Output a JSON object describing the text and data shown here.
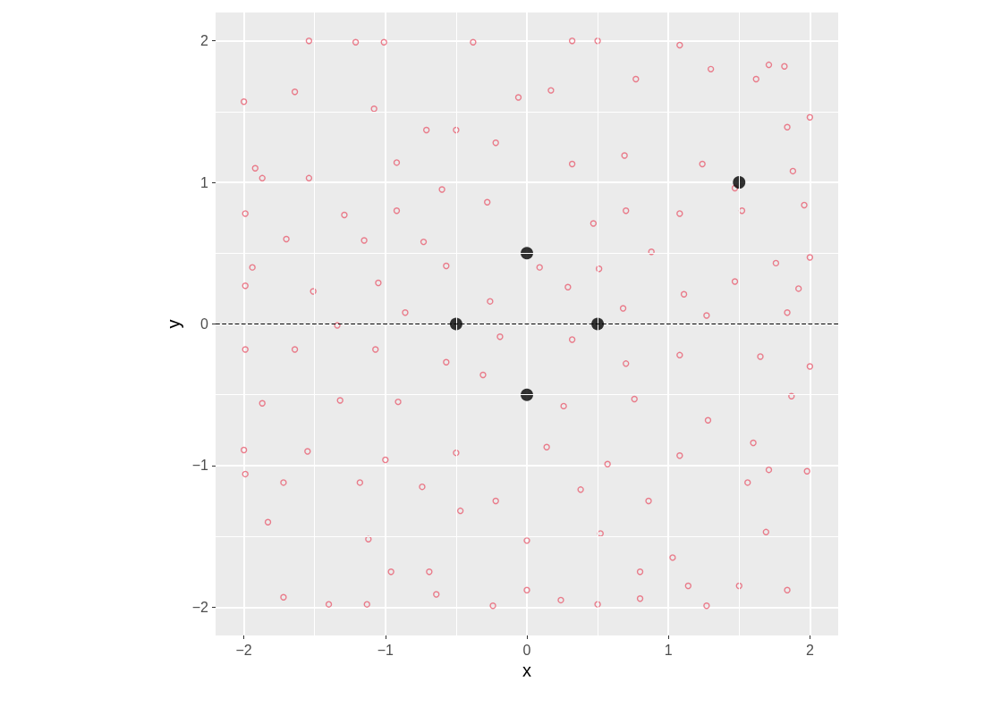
{
  "chart_data": {
    "type": "scatter",
    "xlabel": "x",
    "ylabel": "y",
    "xlim": [
      -2.2,
      2.2
    ],
    "ylim": [
      -2.2,
      2.2
    ],
    "xticks": [
      {
        "value": -2,
        "label": "−2"
      },
      {
        "value": -1,
        "label": "−1"
      },
      0,
      1,
      2
    ],
    "yticks": [
      {
        "value": -2,
        "label": "−2"
      },
      {
        "value": -1,
        "label": "−1"
      },
      0,
      1,
      2
    ],
    "grid": true,
    "marker": "circle",
    "ref_lines": [
      {
        "axis": "y",
        "value": 0,
        "color": "#000000",
        "line_style": "dashed"
      }
    ],
    "series": [
      {
        "color": "#e8556a",
        "x": [
          -1.54,
          -1.01,
          -1.21,
          -0.38,
          0.32,
          0.5,
          1.08,
          1.71,
          1.82,
          -2.0,
          -1.64,
          -1.08,
          -0.06,
          0.17,
          0.77,
          1.3,
          1.62,
          2.0,
          1.84,
          -0.71,
          -0.5,
          -0.22,
          0.32,
          0.69,
          1.24,
          1.47,
          -1.92,
          -1.54,
          -1.87,
          -0.92,
          -0.6,
          -1.29,
          -1.99,
          -0.92,
          -0.28,
          0.47,
          0.7,
          1.08,
          1.52,
          1.88,
          1.96,
          -1.7,
          -1.94,
          -1.15,
          -0.73,
          -0.57,
          0.09,
          0.51,
          0.88,
          1.76,
          2.0,
          -1.99,
          -1.51,
          -1.05,
          -0.26,
          0.29,
          1.11,
          1.47,
          1.92,
          -1.34,
          -0.86,
          0.68,
          1.27,
          1.84,
          -1.99,
          -1.64,
          -1.07,
          -0.57,
          -0.19,
          0.32,
          0.7,
          1.08,
          1.65,
          2.0,
          -1.87,
          -1.32,
          -0.91,
          -0.31,
          0.26,
          0.76,
          1.28,
          1.87,
          -2.0,
          -1.55,
          -1.0,
          -0.5,
          0.14,
          0.57,
          1.08,
          1.6,
          1.98,
          -1.99,
          -1.72,
          -1.18,
          -0.74,
          -0.22,
          0.38,
          0.86,
          1.56,
          1.71,
          -1.83,
          -1.12,
          -0.47,
          0.0,
          0.52,
          1.03,
          1.69,
          -1.72,
          -1.4,
          -1.13,
          -0.96,
          -0.64,
          -0.24,
          0.0,
          0.24,
          0.5,
          0.8,
          1.14,
          1.27,
          1.5,
          1.84,
          0.8,
          -0.69
        ],
        "values": [
          2.0,
          1.99,
          1.99,
          1.99,
          2.0,
          2.0,
          1.97,
          1.83,
          1.82,
          1.57,
          1.64,
          1.52,
          1.6,
          1.65,
          1.73,
          1.8,
          1.73,
          1.46,
          1.39,
          1.37,
          1.37,
          1.28,
          1.13,
          1.19,
          1.13,
          0.96,
          1.1,
          1.03,
          1.03,
          1.14,
          0.95,
          0.77,
          0.78,
          0.8,
          0.86,
          0.71,
          0.8,
          0.78,
          0.8,
          1.08,
          0.84,
          0.6,
          0.4,
          0.59,
          0.58,
          0.41,
          0.4,
          0.39,
          0.51,
          0.43,
          0.47,
          0.27,
          0.23,
          0.29,
          0.16,
          0.26,
          0.21,
          0.3,
          0.25,
          -0.01,
          0.08,
          0.11,
          0.06,
          0.08,
          -0.18,
          -0.18,
          -0.18,
          -0.27,
          -0.09,
          -0.11,
          -0.28,
          -0.22,
          -0.23,
          -0.3,
          -0.56,
          -0.54,
          -0.55,
          -0.36,
          -0.58,
          -0.53,
          -0.68,
          -0.51,
          -0.89,
          -0.9,
          -0.96,
          -0.91,
          -0.87,
          -0.99,
          -0.93,
          -0.84,
          -1.04,
          -1.06,
          -1.12,
          -1.12,
          -1.15,
          -1.25,
          -1.17,
          -1.25,
          -1.12,
          -1.03,
          -1.4,
          -1.52,
          -1.32,
          -1.53,
          -1.48,
          -1.65,
          -1.47,
          -1.93,
          -1.98,
          -1.98,
          -1.75,
          -1.91,
          -1.99,
          -1.88,
          -1.95,
          -1.98,
          -1.75,
          -1.85,
          -1.99,
          -1.85,
          -1.88,
          -1.94,
          -1.75
        ]
      },
      {
        "color": "#000000",
        "x": [
          1.5,
          0,
          -0.5,
          0.5,
          0
        ],
        "values": [
          1,
          0.5,
          0,
          0,
          -0.5
        ]
      }
    ]
  }
}
